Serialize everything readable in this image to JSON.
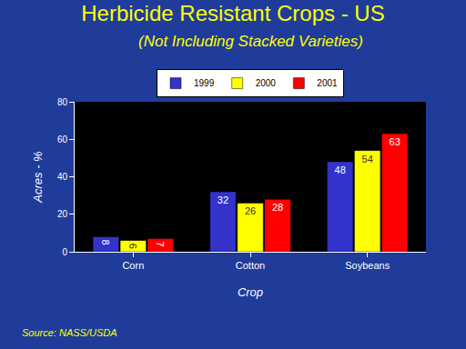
{
  "chart_data": {
    "type": "bar",
    "title": "Herbicide Resistant Crops - US",
    "subtitle": "(Not Including Stacked Varieties)",
    "source": "Source: NASS/USDA",
    "x_label": "Crop",
    "y_label": "Acres - %",
    "categories": [
      "Corn",
      "Cotton",
      "Soybeans"
    ],
    "series": [
      {
        "name": "1999",
        "color": "#3333CC",
        "values": [
          8,
          32,
          48
        ]
      },
      {
        "name": "2000",
        "color": "#FFFF00",
        "values": [
          6,
          26,
          54
        ]
      },
      {
        "name": "2001",
        "color": "#FF0000",
        "values": [
          7,
          28,
          63
        ]
      }
    ],
    "ylim": [
      0,
      80
    ],
    "yticks": [
      0,
      20,
      40,
      60,
      80
    ],
    "grid": false,
    "legend": "top",
    "data_labels": true
  }
}
